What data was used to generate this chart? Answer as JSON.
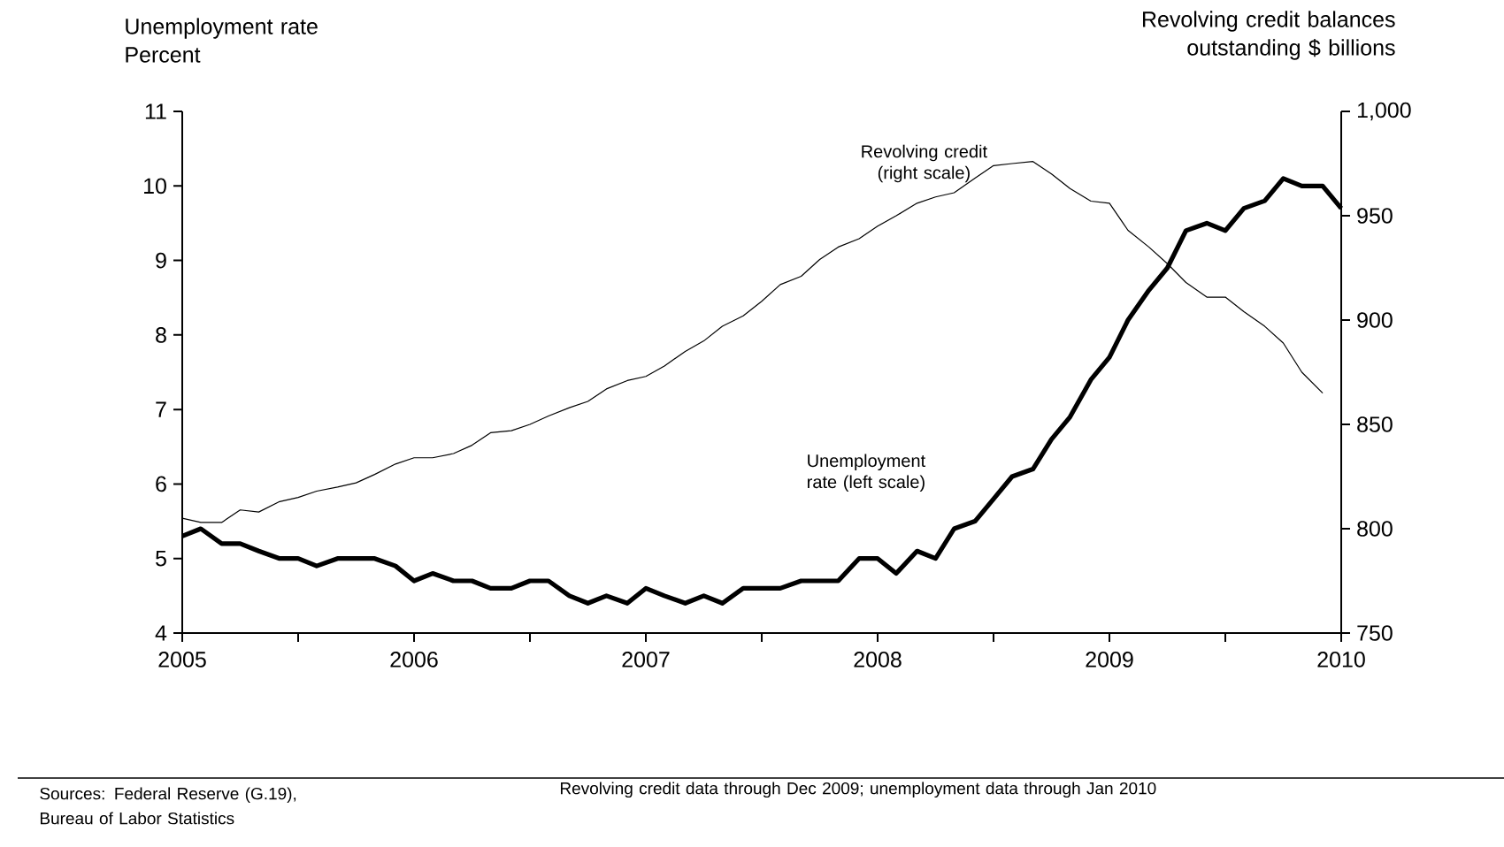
{
  "chart_data": {
    "type": "line",
    "ylabel": "Unemployment rate Percent",
    "y2label": "Revolving credit balances outstanding $ billions",
    "annotations": [
      "Sources: Federal Reserve (G.19), Bureau of Labor Statistics",
      "Revolving credit data through Dec 2009; unemployment data through Jan 2010"
    ],
    "xlim": [
      "2005-01",
      "2010-01"
    ],
    "xticks": [
      "2005",
      {
        "value": "2005-07",
        "label": null
      },
      "2006",
      {
        "value": "2006-07",
        "label": null
      },
      "2007",
      {
        "value": "2007-07",
        "label": null
      },
      "2008",
      {
        "value": "2008-07",
        "label": null
      },
      "2009",
      {
        "value": "2009-07",
        "label": null
      },
      "2010"
    ],
    "ylim": [
      4,
      11
    ],
    "yticks": [
      4,
      5,
      6,
      7,
      8,
      9,
      10,
      11
    ],
    "y2lim": [
      750,
      1000
    ],
    "y2ticks": [
      750,
      800,
      850,
      900,
      950,
      {
        "value": 1000,
        "label": "1,000"
      }
    ],
    "grid": false,
    "series": [
      {
        "name": "Unemployment rate (left scale)",
        "color": "#000000",
        "axis": "y",
        "x": [
          "2005-01",
          "2005-02",
          "2005-03",
          "2005-04",
          "2005-05",
          "2005-06",
          "2005-07",
          "2005-08",
          "2005-09",
          "2005-10",
          "2005-11",
          "2005-12",
          "2006-01",
          "2006-02",
          "2006-03",
          "2006-04",
          "2006-05",
          "2006-06",
          "2006-07",
          "2006-08",
          "2006-09",
          "2006-10",
          "2006-11",
          "2006-12",
          "2007-01",
          "2007-02",
          "2007-03",
          "2007-04",
          "2007-05",
          "2007-06",
          "2007-07",
          "2007-08",
          "2007-09",
          "2007-10",
          "2007-11",
          "2007-12",
          "2008-01",
          "2008-02",
          "2008-03",
          "2008-04",
          "2008-05",
          "2008-06",
          "2008-07",
          "2008-08",
          "2008-09",
          "2008-10",
          "2008-11",
          "2008-12",
          "2009-01",
          "2009-02",
          "2009-03",
          "2009-04",
          "2009-05",
          "2009-06",
          "2009-07",
          "2009-08",
          "2009-09",
          "2009-10",
          "2009-11",
          "2009-12",
          "2010-01"
        ],
        "values": [
          5.3,
          5.4,
          5.2,
          5.2,
          5.1,
          5.0,
          5.0,
          4.9,
          5.0,
          5.0,
          5.0,
          4.9,
          4.7,
          4.8,
          4.7,
          4.7,
          4.6,
          4.6,
          4.7,
          4.7,
          4.5,
          4.4,
          4.5,
          4.4,
          4.6,
          4.5,
          4.4,
          4.5,
          4.4,
          4.6,
          4.6,
          4.6,
          4.7,
          4.7,
          4.7,
          5.0,
          5.0,
          4.8,
          5.1,
          5.0,
          5.4,
          5.5,
          5.8,
          6.1,
          6.2,
          6.6,
          6.9,
          7.4,
          7.7,
          8.2,
          8.6,
          8.9,
          9.4,
          9.5,
          9.4,
          9.7,
          9.8,
          10.1,
          10.0,
          10.0,
          9.7
        ]
      },
      {
        "name": "Revolving credit (right scale)",
        "color": "#000000",
        "axis": "y2",
        "x": [
          "2005-01",
          "2005-02",
          "2005-03",
          "2005-04",
          "2005-05",
          "2005-06",
          "2005-07",
          "2005-08",
          "2005-09",
          "2005-10",
          "2005-11",
          "2005-12",
          "2006-01",
          "2006-02",
          "2006-03",
          "2006-04",
          "2006-05",
          "2006-06",
          "2006-07",
          "2006-08",
          "2006-09",
          "2006-10",
          "2006-11",
          "2006-12",
          "2007-01",
          "2007-02",
          "2007-03",
          "2007-04",
          "2007-05",
          "2007-06",
          "2007-07",
          "2007-08",
          "2007-09",
          "2007-10",
          "2007-11",
          "2007-12",
          "2008-01",
          "2008-02",
          "2008-03",
          "2008-04",
          "2008-05",
          "2008-06",
          "2008-07",
          "2008-08",
          "2008-09",
          "2008-10",
          "2008-11",
          "2008-12",
          "2009-01",
          "2009-02",
          "2009-03",
          "2009-04",
          "2009-05",
          "2009-06",
          "2009-07",
          "2009-08",
          "2009-09",
          "2009-10",
          "2009-11",
          "2009-12"
        ],
        "values": [
          805,
          803,
          803,
          809,
          808,
          813,
          815,
          818,
          820,
          822,
          826,
          831,
          834,
          834,
          836,
          840,
          846,
          847,
          850,
          854,
          858,
          861,
          867,
          871,
          873,
          878,
          885,
          890,
          897,
          902,
          909,
          917,
          921,
          929,
          935,
          939,
          945,
          950,
          956,
          959,
          961,
          968,
          974,
          975,
          976,
          970,
          963,
          957,
          956,
          943,
          935,
          927,
          918,
          911,
          911,
          904,
          897,
          889,
          875,
          865
        ]
      }
    ]
  }
}
